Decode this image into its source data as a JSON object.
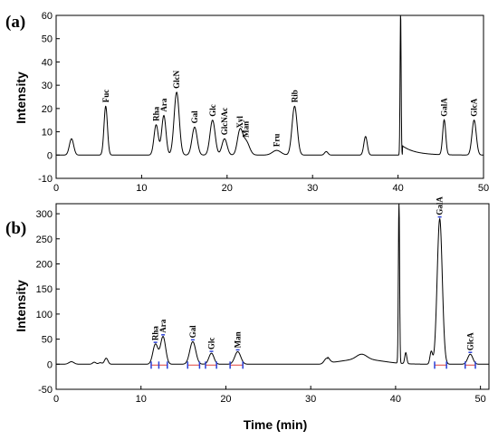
{
  "chart_data": [
    {
      "type": "line",
      "panel_label": "(a)",
      "xlabel": "",
      "ylabel": "Intensity",
      "xlim": [
        0,
        50
      ],
      "ylim": [
        -10,
        60
      ],
      "x_ticks": [
        "0",
        "10",
        "20",
        "30",
        "40",
        "50"
      ],
      "y_ticks": [
        "-10",
        "0",
        "10",
        "20",
        "30",
        "40",
        "50",
        "60"
      ],
      "y_tick_values": [
        -10,
        0,
        10,
        20,
        30,
        40,
        50,
        60
      ],
      "grid": false,
      "baseline": 0,
      "series": [
        {
          "peaks": [
            {
              "t": 1.8,
              "h": 7,
              "w": 0.25
            },
            {
              "t": 5.8,
              "h": 21,
              "w": 0.2
            },
            {
              "t": 11.7,
              "h": 13,
              "w": 0.25
            },
            {
              "t": 12.6,
              "h": 17,
              "w": 0.25
            },
            {
              "t": 14.1,
              "h": 27,
              "w": 0.3
            },
            {
              "t": 16.2,
              "h": 12,
              "w": 0.3
            },
            {
              "t": 18.3,
              "h": 15,
              "w": 0.3
            },
            {
              "t": 19.7,
              "h": 7,
              "w": 0.3
            },
            {
              "t": 21.5,
              "h": 10,
              "w": 0.3
            },
            {
              "t": 22.2,
              "h": 6,
              "w": 0.4
            },
            {
              "t": 25.8,
              "h": 2,
              "w": 0.5
            },
            {
              "t": 27.9,
              "h": 21,
              "w": 0.3
            },
            {
              "t": 31.6,
              "h": 1.5,
              "w": 0.2
            },
            {
              "t": 36.2,
              "h": 8,
              "w": 0.2
            },
            {
              "t": 40.3,
              "h": 62,
              "w": 0.06
            },
            {
              "t": 45.4,
              "h": 15,
              "w": 0.18
            },
            {
              "t": 48.9,
              "h": 15,
              "w": 0.25
            }
          ]
        }
      ],
      "annotations": [
        {
          "text": "Fuc",
          "x": 5.8,
          "y": 21
        },
        {
          "text": "Rha",
          "x": 11.7,
          "y": 13
        },
        {
          "text": "Ara",
          "x": 12.6,
          "y": 17
        },
        {
          "text": "GlcN",
          "x": 14.1,
          "y": 27
        },
        {
          "text": "Gal",
          "x": 16.2,
          "y": 12
        },
        {
          "text": "Glc",
          "x": 18.3,
          "y": 15
        },
        {
          "text": "GlcNAc",
          "x": 19.7,
          "y": 7
        },
        {
          "text": "Xyl",
          "x": 21.5,
          "y": 10
        },
        {
          "text": "Man",
          "x": 22.2,
          "y": 6
        },
        {
          "text": "Fru",
          "x": 25.8,
          "y": 2
        },
        {
          "text": "Rib",
          "x": 27.9,
          "y": 21
        },
        {
          "text": "GalA",
          "x": 45.4,
          "y": 15
        },
        {
          "text": "GlcA",
          "x": 48.9,
          "y": 15
        }
      ]
    },
    {
      "type": "line",
      "panel_label": "(b)",
      "xlabel": "Time (min)",
      "ylabel": "Intensity",
      "xlim": [
        0,
        51
      ],
      "ylim": [
        -50,
        320
      ],
      "x_ticks": [
        "0",
        "10",
        "20",
        "30",
        "40",
        "50"
      ],
      "y_ticks": [
        "-50",
        "0",
        "50",
        "100",
        "150",
        "200",
        "250",
        "300"
      ],
      "y_tick_values": [
        -50,
        0,
        50,
        100,
        150,
        200,
        250,
        300
      ],
      "grid": false,
      "baseline": 0,
      "series": [
        {
          "peaks": [
            {
              "t": 1.8,
              "h": 5,
              "w": 0.3
            },
            {
              "t": 4.5,
              "h": 4,
              "w": 0.2
            },
            {
              "t": 5.2,
              "h": 3,
              "w": 0.2
            },
            {
              "t": 5.9,
              "h": 12,
              "w": 0.2
            },
            {
              "t": 11.7,
              "h": 40,
              "w": 0.3
            },
            {
              "t": 12.6,
              "h": 55,
              "w": 0.3
            },
            {
              "t": 16.1,
              "h": 45,
              "w": 0.35
            },
            {
              "t": 18.3,
              "h": 22,
              "w": 0.3
            },
            {
              "t": 21.4,
              "h": 25,
              "w": 0.35
            },
            {
              "t": 31.9,
              "h": 12,
              "w": 0.3
            },
            {
              "t": 36.0,
              "h": 10,
              "w": 0.6
            },
            {
              "t": 40.4,
              "h": 330,
              "w": 0.07
            },
            {
              "t": 41.2,
              "h": 22,
              "w": 0.12
            },
            {
              "t": 44.2,
              "h": 25,
              "w": 0.15
            },
            {
              "t": 45.2,
              "h": 290,
              "w": 0.3
            },
            {
              "t": 48.8,
              "h": 20,
              "w": 0.3
            }
          ]
        }
      ],
      "annotations": [
        {
          "text": "Rha",
          "x": 11.7,
          "y": 40
        },
        {
          "text": "Ara",
          "x": 12.6,
          "y": 55
        },
        {
          "text": "Gal",
          "x": 16.1,
          "y": 45
        },
        {
          "text": "Glc",
          "x": 18.3,
          "y": 22
        },
        {
          "text": "Man",
          "x": 21.4,
          "y": 25
        },
        {
          "text": "GalA",
          "x": 45.2,
          "y": 290
        },
        {
          "text": "GlcA",
          "x": 48.8,
          "y": 20
        }
      ],
      "integration_marks": [
        11.2,
        12.1,
        13.1,
        15.5,
        16.9,
        17.6,
        18.9,
        20.5,
        22.0,
        44.6,
        46.0,
        48.2,
        49.4
      ]
    }
  ]
}
